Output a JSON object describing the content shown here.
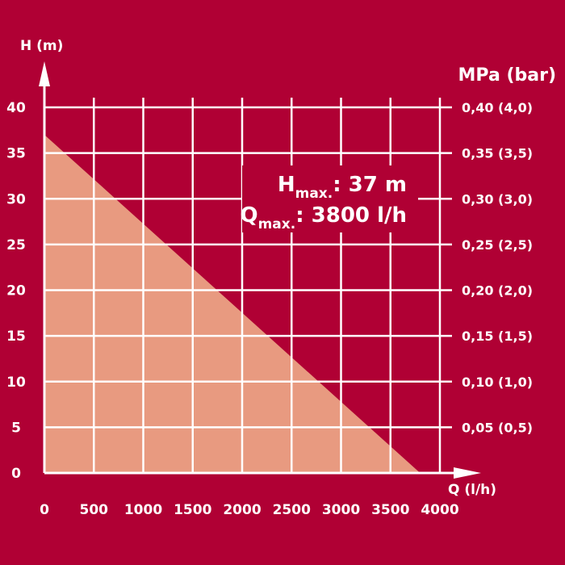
{
  "colors": {
    "background": "#b00034",
    "grid": "#ffffff",
    "fill": "#e89a80",
    "text": "#ffffff"
  },
  "chart_data": {
    "type": "area",
    "title": "",
    "xlabel": "Q (l/h)",
    "ylabel": "H (m)",
    "y2label": "MPa (bar)",
    "xlim": [
      0,
      4000
    ],
    "ylim": [
      0,
      40
    ],
    "grid": true,
    "x_ticks": [
      "0",
      "500",
      "1000",
      "1500",
      "2000",
      "2500",
      "3000",
      "3500",
      "4000"
    ],
    "x_tick_values": [
      0,
      500,
      1000,
      1500,
      2000,
      2500,
      3000,
      3500,
      4000
    ],
    "y_ticks": [
      "0",
      "5",
      "10",
      "15",
      "20",
      "25",
      "30",
      "35",
      "40"
    ],
    "y_tick_values": [
      0,
      5,
      10,
      15,
      20,
      25,
      30,
      35,
      40
    ],
    "y2_ticks": [
      "0,05 (0,5)",
      "0,10 (1,0)",
      "0,15 (1,5)",
      "0,20 (2,0)",
      "0,25 (2,5)",
      "0,30 (3,0)",
      "0,35 (3,5)",
      "0,40 (4,0)"
    ],
    "y2_tick_values": [
      5,
      10,
      15,
      20,
      25,
      30,
      35,
      40
    ],
    "series": [
      {
        "x": [
          0,
          3800
        ],
        "y": [
          37,
          0
        ]
      }
    ],
    "annotations": {
      "hmax_symbol": "H",
      "hmax_sub": "max.",
      "hmax_value": ": 37 m",
      "qmax_symbol": "Q",
      "qmax_sub": "max.",
      "qmax_value": ": 3800 l/h"
    }
  }
}
